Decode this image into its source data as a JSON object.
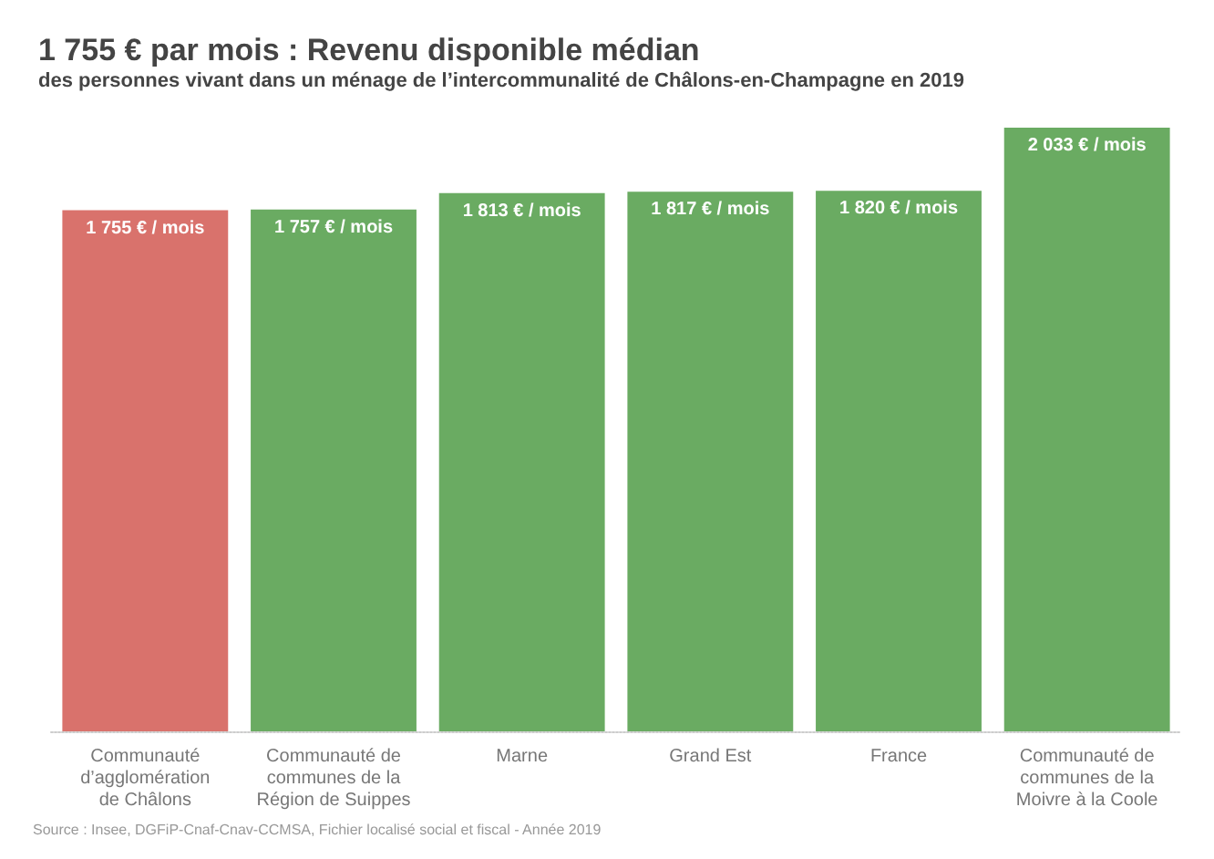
{
  "chart_data": {
    "type": "bar",
    "title": "1 755 € par mois : Revenu disponible médian",
    "subtitle": "des personnes vivant dans un ménage de l’intercommunalité de Châlons-en-Champagne en 2019",
    "categories": [
      "Communauté\nd’agglomération\nde Châlons",
      "Communauté de\ncommunes de la\nRégion de Suippes",
      "Marne",
      "Grand Est",
      "France",
      "Communauté de\ncommunes de la\nMoivre à la Coole"
    ],
    "values": [
      1755,
      1757,
      1813,
      1817,
      1820,
      2033
    ],
    "colors": [
      "#d9726c",
      "#6aab62",
      "#6aab62",
      "#6aab62",
      "#6aab62",
      "#6aab62"
    ],
    "value_labels": [
      "1 755 € / mois",
      "1 757 € / mois",
      "1 813 € / mois",
      "1 817 € / mois",
      "1 820 € / mois",
      "2 033 € / mois"
    ],
    "annotations": [
      "Source : Insee, DGFiP-Cnaf-Cnav-CCMSA, Fichier localisé social et fiscal - Année 2019"
    ]
  }
}
